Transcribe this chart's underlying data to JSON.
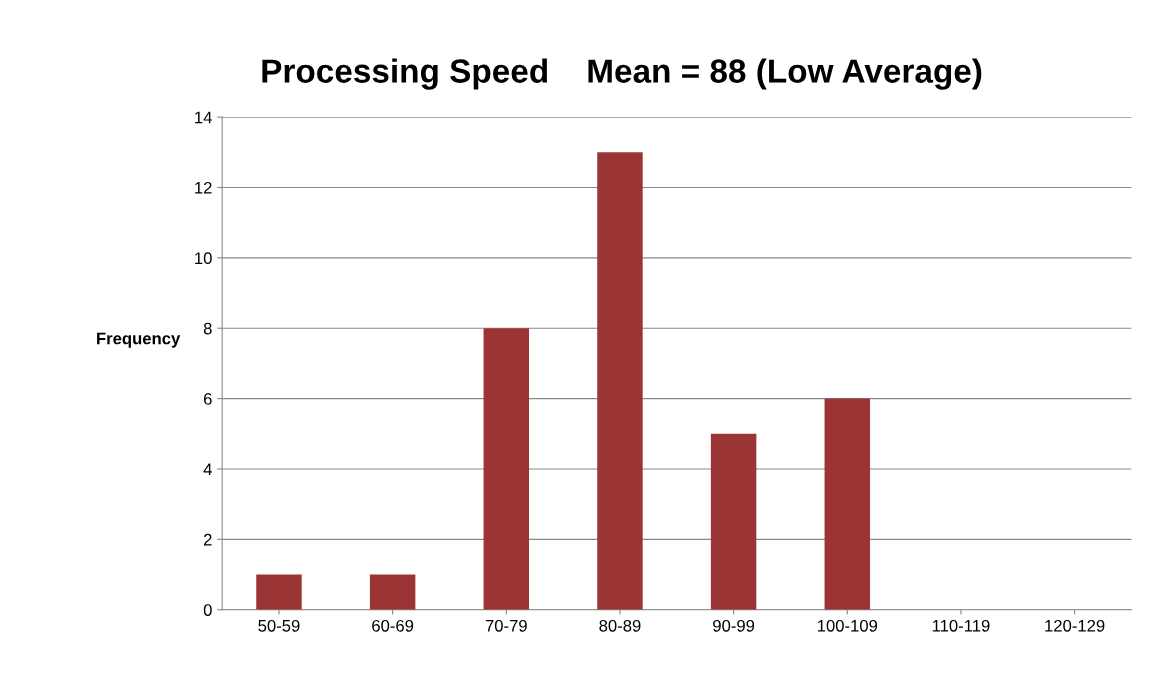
{
  "chart_data": {
    "type": "bar",
    "title": "Processing Speed    Mean = 88 (Low Average)",
    "ylabel": "Frequency",
    "categories": [
      "50-59",
      "60-69",
      "70-79",
      "80-89",
      "90-99",
      "100-109",
      "110-119",
      "120-129"
    ],
    "values": [
      1,
      1,
      8,
      13,
      5,
      6,
      0,
      0
    ],
    "color": "#9b3535",
    "ylim": [
      0,
      14
    ],
    "yticks": [
      0,
      2,
      4,
      6,
      8,
      10,
      12,
      14
    ],
    "grid": "y"
  }
}
